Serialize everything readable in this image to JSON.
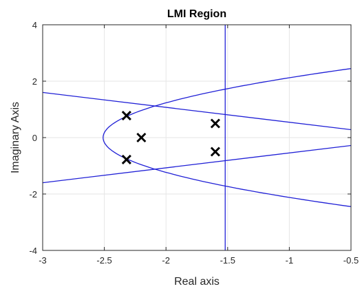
{
  "chart_data": {
    "type": "scatter",
    "title": "LMI Region",
    "xlabel": "Real axis",
    "ylabel": "Imaginary Axis",
    "xlim": [
      -3,
      -0.5
    ],
    "ylim": [
      -4,
      4
    ],
    "xticks": [
      -3,
      -2.5,
      -2,
      -1.5,
      -1,
      -0.5
    ],
    "xtick_labels": [
      "-3",
      "-2.5",
      "-2",
      "-1.5",
      "-1",
      "-0.5"
    ],
    "yticks": [
      -4,
      -2,
      0,
      2,
      4
    ],
    "ytick_labels": [
      "-4",
      "-2",
      "0",
      "2",
      "4"
    ],
    "grid": true,
    "poles": [
      {
        "x": -2.32,
        "y": 0.78
      },
      {
        "x": -2.32,
        "y": -0.78
      },
      {
        "x": -2.2,
        "y": 0.0
      },
      {
        "x": -1.6,
        "y": 0.5
      },
      {
        "x": -1.6,
        "y": -0.5
      }
    ],
    "region_boundaries": {
      "vertical_line_x": -1.52,
      "sector_upper": {
        "x": [
          -3,
          -0.5
        ],
        "y": [
          1.6,
          0.28
        ]
      },
      "sector_lower": {
        "x": [
          -3,
          -0.5
        ],
        "y": [
          -1.6,
          -0.28
        ]
      },
      "parabola": {
        "vertex_x": -2.51,
        "k": 2.98,
        "x_max": -0.5
      }
    },
    "colors": {
      "boundary": "#1f1fd6",
      "marker": "#000000",
      "grid": "#e6e6e6",
      "axes": "#262626"
    }
  }
}
